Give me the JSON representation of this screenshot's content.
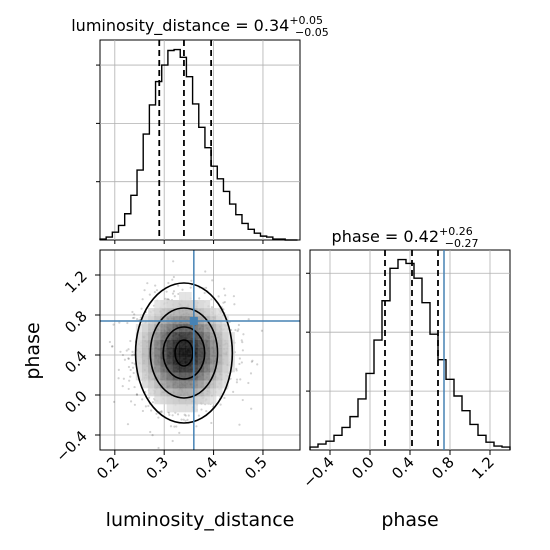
{
  "colors": {
    "truth": "#4682b4",
    "hist": "#000000",
    "grid": "#b0b0b0",
    "density_dark": "#000000",
    "density_light": "#ffffff"
  },
  "chart_data": [
    {
      "type": "histogram",
      "name": "luminosity_distance-marginal",
      "title_prefix": "luminosity_distance = 0.34",
      "title_sup": "+0.05",
      "title_sub": "−0.05",
      "xlim": [
        0.17,
        0.575
      ],
      "quantile_lines": [
        0.29,
        0.34,
        0.395
      ],
      "truth": null,
      "grid": true,
      "bin_edges": [
        0.17,
        0.1825,
        0.195,
        0.2075,
        0.22,
        0.2325,
        0.245,
        0.2575,
        0.27,
        0.2825,
        0.295,
        0.3075,
        0.32,
        0.3325,
        0.345,
        0.3575,
        0.37,
        0.3825,
        0.395,
        0.4075,
        0.42,
        0.4325,
        0.445,
        0.4575,
        0.47,
        0.4825,
        0.495,
        0.5075,
        0.52,
        0.5325,
        0.545,
        0.5575,
        0.57
      ],
      "counts": [
        1,
        3,
        8,
        15,
        27,
        46,
        72,
        109,
        139,
        163,
        180,
        195,
        196,
        188,
        168,
        140,
        116,
        95,
        76,
        63,
        50,
        37,
        26,
        17,
        11,
        7,
        4,
        3,
        1,
        1,
        0,
        0
      ]
    },
    {
      "type": "histogram",
      "name": "phase-marginal",
      "title_prefix": "phase = 0.42",
      "title_sup": "+0.26",
      "title_sub": "−0.27",
      "xlim": [
        -0.6,
        1.4
      ],
      "xticks": [
        -0.4,
        0.0,
        0.4,
        0.8,
        1.2
      ],
      "xtick_labels": [
        "−0.4",
        "0.0",
        "0.4",
        "0.8",
        "1.2"
      ],
      "xlabel": "phase",
      "quantile_lines": [
        0.15,
        0.42,
        0.68
      ],
      "truth": 0.74,
      "grid": true,
      "bin_edges": [
        -0.6,
        -0.52,
        -0.44,
        -0.36,
        -0.28,
        -0.2,
        -0.12,
        -0.04,
        0.04,
        0.12,
        0.2,
        0.28,
        0.36,
        0.44,
        0.52,
        0.6,
        0.68,
        0.76,
        0.84,
        0.92,
        1.0,
        1.08,
        1.16,
        1.24,
        1.32,
        1.4
      ],
      "counts": [
        3,
        6,
        9,
        15,
        23,
        34,
        52,
        78,
        112,
        152,
        185,
        194,
        190,
        175,
        150,
        118,
        92,
        72,
        55,
        40,
        26,
        15,
        8,
        4,
        3
      ]
    },
    {
      "type": "scatter",
      "name": "luminosity_distance-vs-phase",
      "xlabel": "luminosity_distance",
      "ylabel": "phase",
      "xlim": [
        0.17,
        0.575
      ],
      "ylim": [
        -0.55,
        1.45
      ],
      "xticks": [
        0.2,
        0.3,
        0.4,
        0.5
      ],
      "xtick_labels": [
        "0.2",
        "0.3",
        "0.4",
        "0.5"
      ],
      "yticks": [
        -0.4,
        0.0,
        0.4,
        0.8,
        1.2
      ],
      "ytick_labels": [
        "−0.4",
        "0.0",
        "0.4",
        "0.8",
        "1.2"
      ],
      "truth": [
        0.36,
        0.74
      ],
      "grid": true,
      "density_center": [
        0.34,
        0.42
      ],
      "contour_levels": [
        {
          "rx": 0.018,
          "ry": 0.13
        },
        {
          "rx": 0.042,
          "ry": 0.26
        },
        {
          "rx": 0.068,
          "ry": 0.45
        },
        {
          "rx": 0.098,
          "ry": 0.7
        }
      ]
    }
  ]
}
